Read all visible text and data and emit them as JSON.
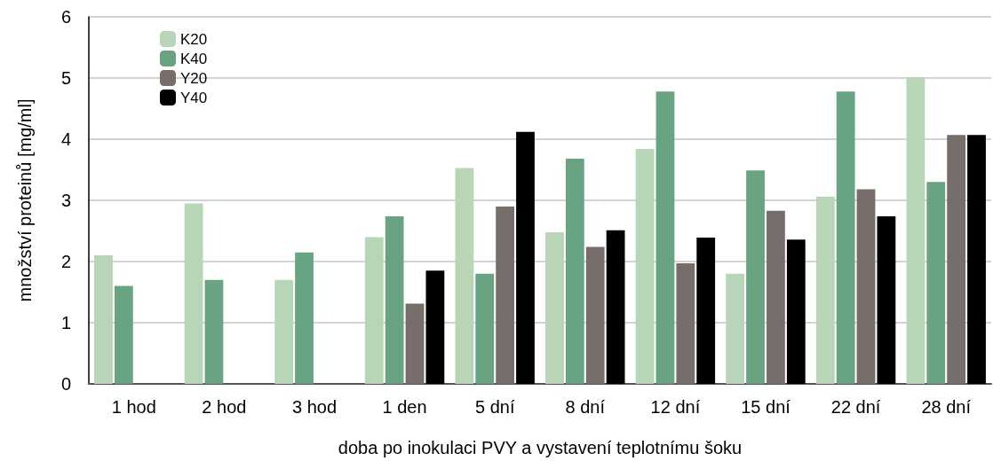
{
  "chart_data": {
    "type": "bar",
    "xlabel": "doba po inokulaci PVY a vystavení teplotnímu šoku",
    "ylabel": "množství proteinů [mg/ml]",
    "categories": [
      "1 hod",
      "2 hod",
      "3 hod",
      "1 den",
      "5 dní",
      "8 dní",
      "12 dní",
      "15 dní",
      "22 dní",
      "28 dní"
    ],
    "series": [
      {
        "name": "K20",
        "color": "#b8d5b7",
        "values": [
          2.1,
          2.95,
          1.7,
          2.4,
          3.53,
          2.48,
          3.84,
          1.8,
          3.06,
          5.01
        ]
      },
      {
        "name": "K40",
        "color": "#69a482",
        "values": [
          1.6,
          1.7,
          2.15,
          2.74,
          1.8,
          3.68,
          4.78,
          3.49,
          4.78,
          3.3
        ]
      },
      {
        "name": "Y20",
        "color": "#776d6a",
        "values": [
          null,
          null,
          null,
          1.31,
          2.9,
          2.24,
          1.97,
          2.83,
          3.18,
          4.07
        ]
      },
      {
        "name": "Y40",
        "color": "#000000",
        "values": [
          null,
          null,
          null,
          1.85,
          4.12,
          2.51,
          2.39,
          2.36,
          2.74,
          4.07
        ]
      }
    ],
    "ylim": [
      0,
      6
    ],
    "yticks": [
      0,
      1,
      2,
      3,
      4,
      5,
      6
    ],
    "grid": "y",
    "legend": "top left"
  }
}
